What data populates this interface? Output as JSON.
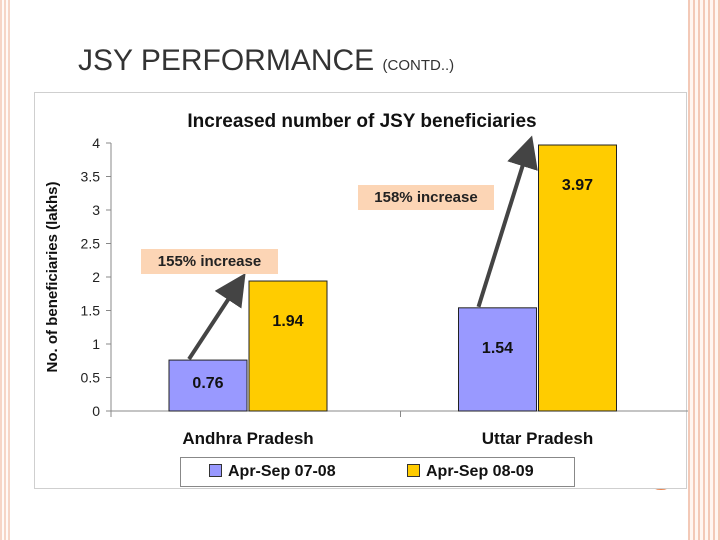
{
  "slide": {
    "title": "JSY PERFORMANCE",
    "title_suffix": "(CONTD..)"
  },
  "chart_data": {
    "type": "bar",
    "title": "Increased number of JSY beneficiaries",
    "xlabel": "",
    "ylabel": "No. of beneficiaries (lakhs)",
    "ylim": [
      0,
      4
    ],
    "yticks": [
      "0",
      "0.5",
      "1",
      "1.5",
      "2",
      "2.5",
      "3",
      "3.5",
      "4"
    ],
    "categories": [
      "Andhra Pradesh",
      "Uttar Pradesh"
    ],
    "series": [
      {
        "name": "Apr-Sep 07-08",
        "values": [
          0.76,
          1.54
        ],
        "labels": [
          "0.76",
          "1.54"
        ],
        "color": "#9999ff"
      },
      {
        "name": "Apr-Sep 08-09",
        "values": [
          1.94,
          3.97
        ],
        "labels": [
          "1.94",
          "3.97"
        ],
        "color": "#ffcc00"
      }
    ],
    "legend": "bottom",
    "annotations": [
      {
        "text": "155% increase",
        "category": "Andhra Pradesh"
      },
      {
        "text": "158% increase",
        "category": "Uttar Pradesh"
      }
    ]
  },
  "annotation_box_color": "#fcd5b5"
}
